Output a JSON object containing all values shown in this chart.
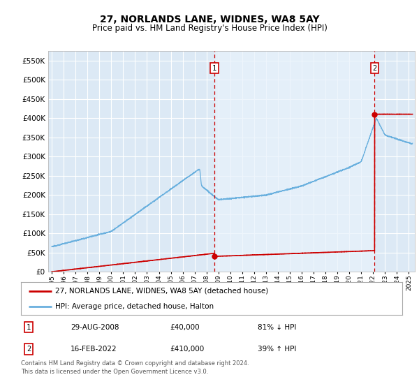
{
  "title": "27, NORLANDS LANE, WIDNES, WA8 5AY",
  "subtitle": "Price paid vs. HM Land Registry's House Price Index (HPI)",
  "title_fontsize": 10,
  "subtitle_fontsize": 8.5,
  "background_color": "#ffffff",
  "plot_bg_color": "#dce9f5",
  "plot_bg_color2": "#e8f2fb",
  "grid_color": "#ffffff",
  "ylabel_vals": [
    0,
    50000,
    100000,
    150000,
    200000,
    250000,
    300000,
    350000,
    400000,
    450000,
    500000,
    550000
  ],
  "ylabel_labels": [
    "£0",
    "£50K",
    "£100K",
    "£150K",
    "£200K",
    "£250K",
    "£300K",
    "£350K",
    "£400K",
    "£450K",
    "£500K",
    "£550K"
  ],
  "ylim": [
    0,
    575000
  ],
  "xlim_start": 1994.7,
  "xlim_end": 2025.5,
  "hpi_color": "#6ab0de",
  "price_color": "#cc0000",
  "marker1_x": 2008.66,
  "marker1_y": 40000,
  "marker2_x": 2022.12,
  "marker2_y": 410000,
  "vline1_x": 2008.66,
  "vline2_x": 2022.12,
  "legend_line1": "27, NORLANDS LANE, WIDNES, WA8 5AY (detached house)",
  "legend_line2": "HPI: Average price, detached house, Halton",
  "table_data": [
    {
      "num": "1",
      "date": "29-AUG-2008",
      "price": "£40,000",
      "hpi": "81% ↓ HPI"
    },
    {
      "num": "2",
      "date": "16-FEB-2022",
      "price": "£410,000",
      "hpi": "39% ↑ HPI"
    }
  ],
  "footer": "Contains HM Land Registry data © Crown copyright and database right 2024.\nThis data is licensed under the Open Government Licence v3.0."
}
